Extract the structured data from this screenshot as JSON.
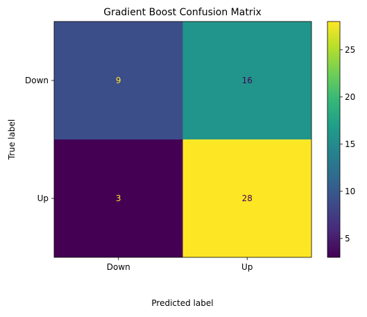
{
  "chart_data": {
    "type": "heatmap",
    "title": "Gradient Boost Confusion Matrix",
    "xlabel": "Predicted label",
    "ylabel": "True label",
    "x_categories": [
      "Down",
      "Up"
    ],
    "y_categories": [
      "Down",
      "Up"
    ],
    "values": [
      [
        9,
        16
      ],
      [
        3,
        28
      ]
    ],
    "colormap": "viridis",
    "colorbar": {
      "range": [
        3,
        28
      ],
      "ticks": [
        5,
        10,
        15,
        20,
        25
      ]
    },
    "text_colors": {
      "on_dark": "#fde725",
      "on_light": "#440154"
    }
  }
}
